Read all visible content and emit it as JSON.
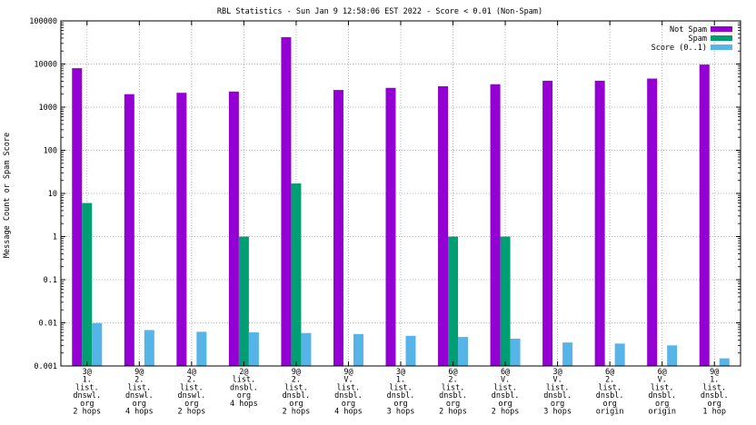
{
  "chart_data": {
    "type": "bar",
    "title": "RBL Statistics - Sun Jan  9 12:58:06 EST 2022 - Score < 0.01 (Non-Spam)",
    "xlabel": "",
    "ylabel": "Message Count or Spam Score",
    "yscale": "log",
    "ylim": [
      0.001,
      100000
    ],
    "yticks": [
      {
        "value": 0.001,
        "label": "0.001"
      },
      {
        "value": 0.01,
        "label": "0.01"
      },
      {
        "value": 0.1,
        "label": "0.1"
      },
      {
        "value": 1,
        "label": "1"
      },
      {
        "value": 10,
        "label": "10"
      },
      {
        "value": 100,
        "label": "100"
      },
      {
        "value": 1000,
        "label": "1000"
      },
      {
        "value": 10000,
        "label": "10000"
      },
      {
        "value": 100000,
        "label": "100000"
      }
    ],
    "grid": true,
    "legend_position": "top-right",
    "categories": [
      [
        "3@",
        "1.",
        "list.",
        "dnswl.",
        "org",
        "2 hops"
      ],
      [
        "9@",
        "2.",
        "list.",
        "dnswl.",
        "org",
        "4 hops"
      ],
      [
        "4@",
        "2.",
        "list.",
        "dnswl.",
        "org",
        "2 hops"
      ],
      [
        "2@",
        "list.",
        "dnsbl.",
        "org",
        "4 hops"
      ],
      [
        "9@",
        "2.",
        "list.",
        "dnsbl.",
        "org",
        "2 hops"
      ],
      [
        "9@",
        "V.",
        "list.",
        "dnsbl.",
        "org",
        "4 hops"
      ],
      [
        "3@",
        "1.",
        "list.",
        "dnsbl.",
        "org",
        "3 hops"
      ],
      [
        "6@",
        "2.",
        "list.",
        "dnsbl.",
        "org",
        "2 hops"
      ],
      [
        "6@",
        "V.",
        "list.",
        "dnsbl.",
        "org",
        "2 hops"
      ],
      [
        "3@",
        "V.",
        "list.",
        "dnsbl.",
        "org",
        "3 hops"
      ],
      [
        "6@",
        "2.",
        "list.",
        "dnsbl.",
        "org",
        "origin"
      ],
      [
        "6@",
        "V.",
        "list.",
        "dnsbl.",
        "org",
        "origin"
      ],
      [
        "9@",
        "1.",
        "list.",
        "dnsbl.",
        "org",
        "1 hop"
      ]
    ],
    "series": [
      {
        "name": "Not Spam",
        "color": "#9400d3",
        "values": [
          8000,
          2000,
          2150,
          2300,
          42000,
          2500,
          2800,
          3050,
          3400,
          4100,
          4100,
          4600,
          9700
        ]
      },
      {
        "name": "Spam",
        "color": "#009e73",
        "values": [
          6,
          null,
          null,
          1,
          17,
          null,
          null,
          1,
          1,
          null,
          null,
          null,
          null
        ]
      },
      {
        "name": "Score (0..1)",
        "color": "#56b4e9",
        "values": [
          0.0098,
          0.0068,
          0.0062,
          0.006,
          0.0058,
          0.0055,
          0.005,
          0.0047,
          0.0043,
          0.0035,
          0.0033,
          0.003,
          0.0015
        ]
      }
    ]
  }
}
